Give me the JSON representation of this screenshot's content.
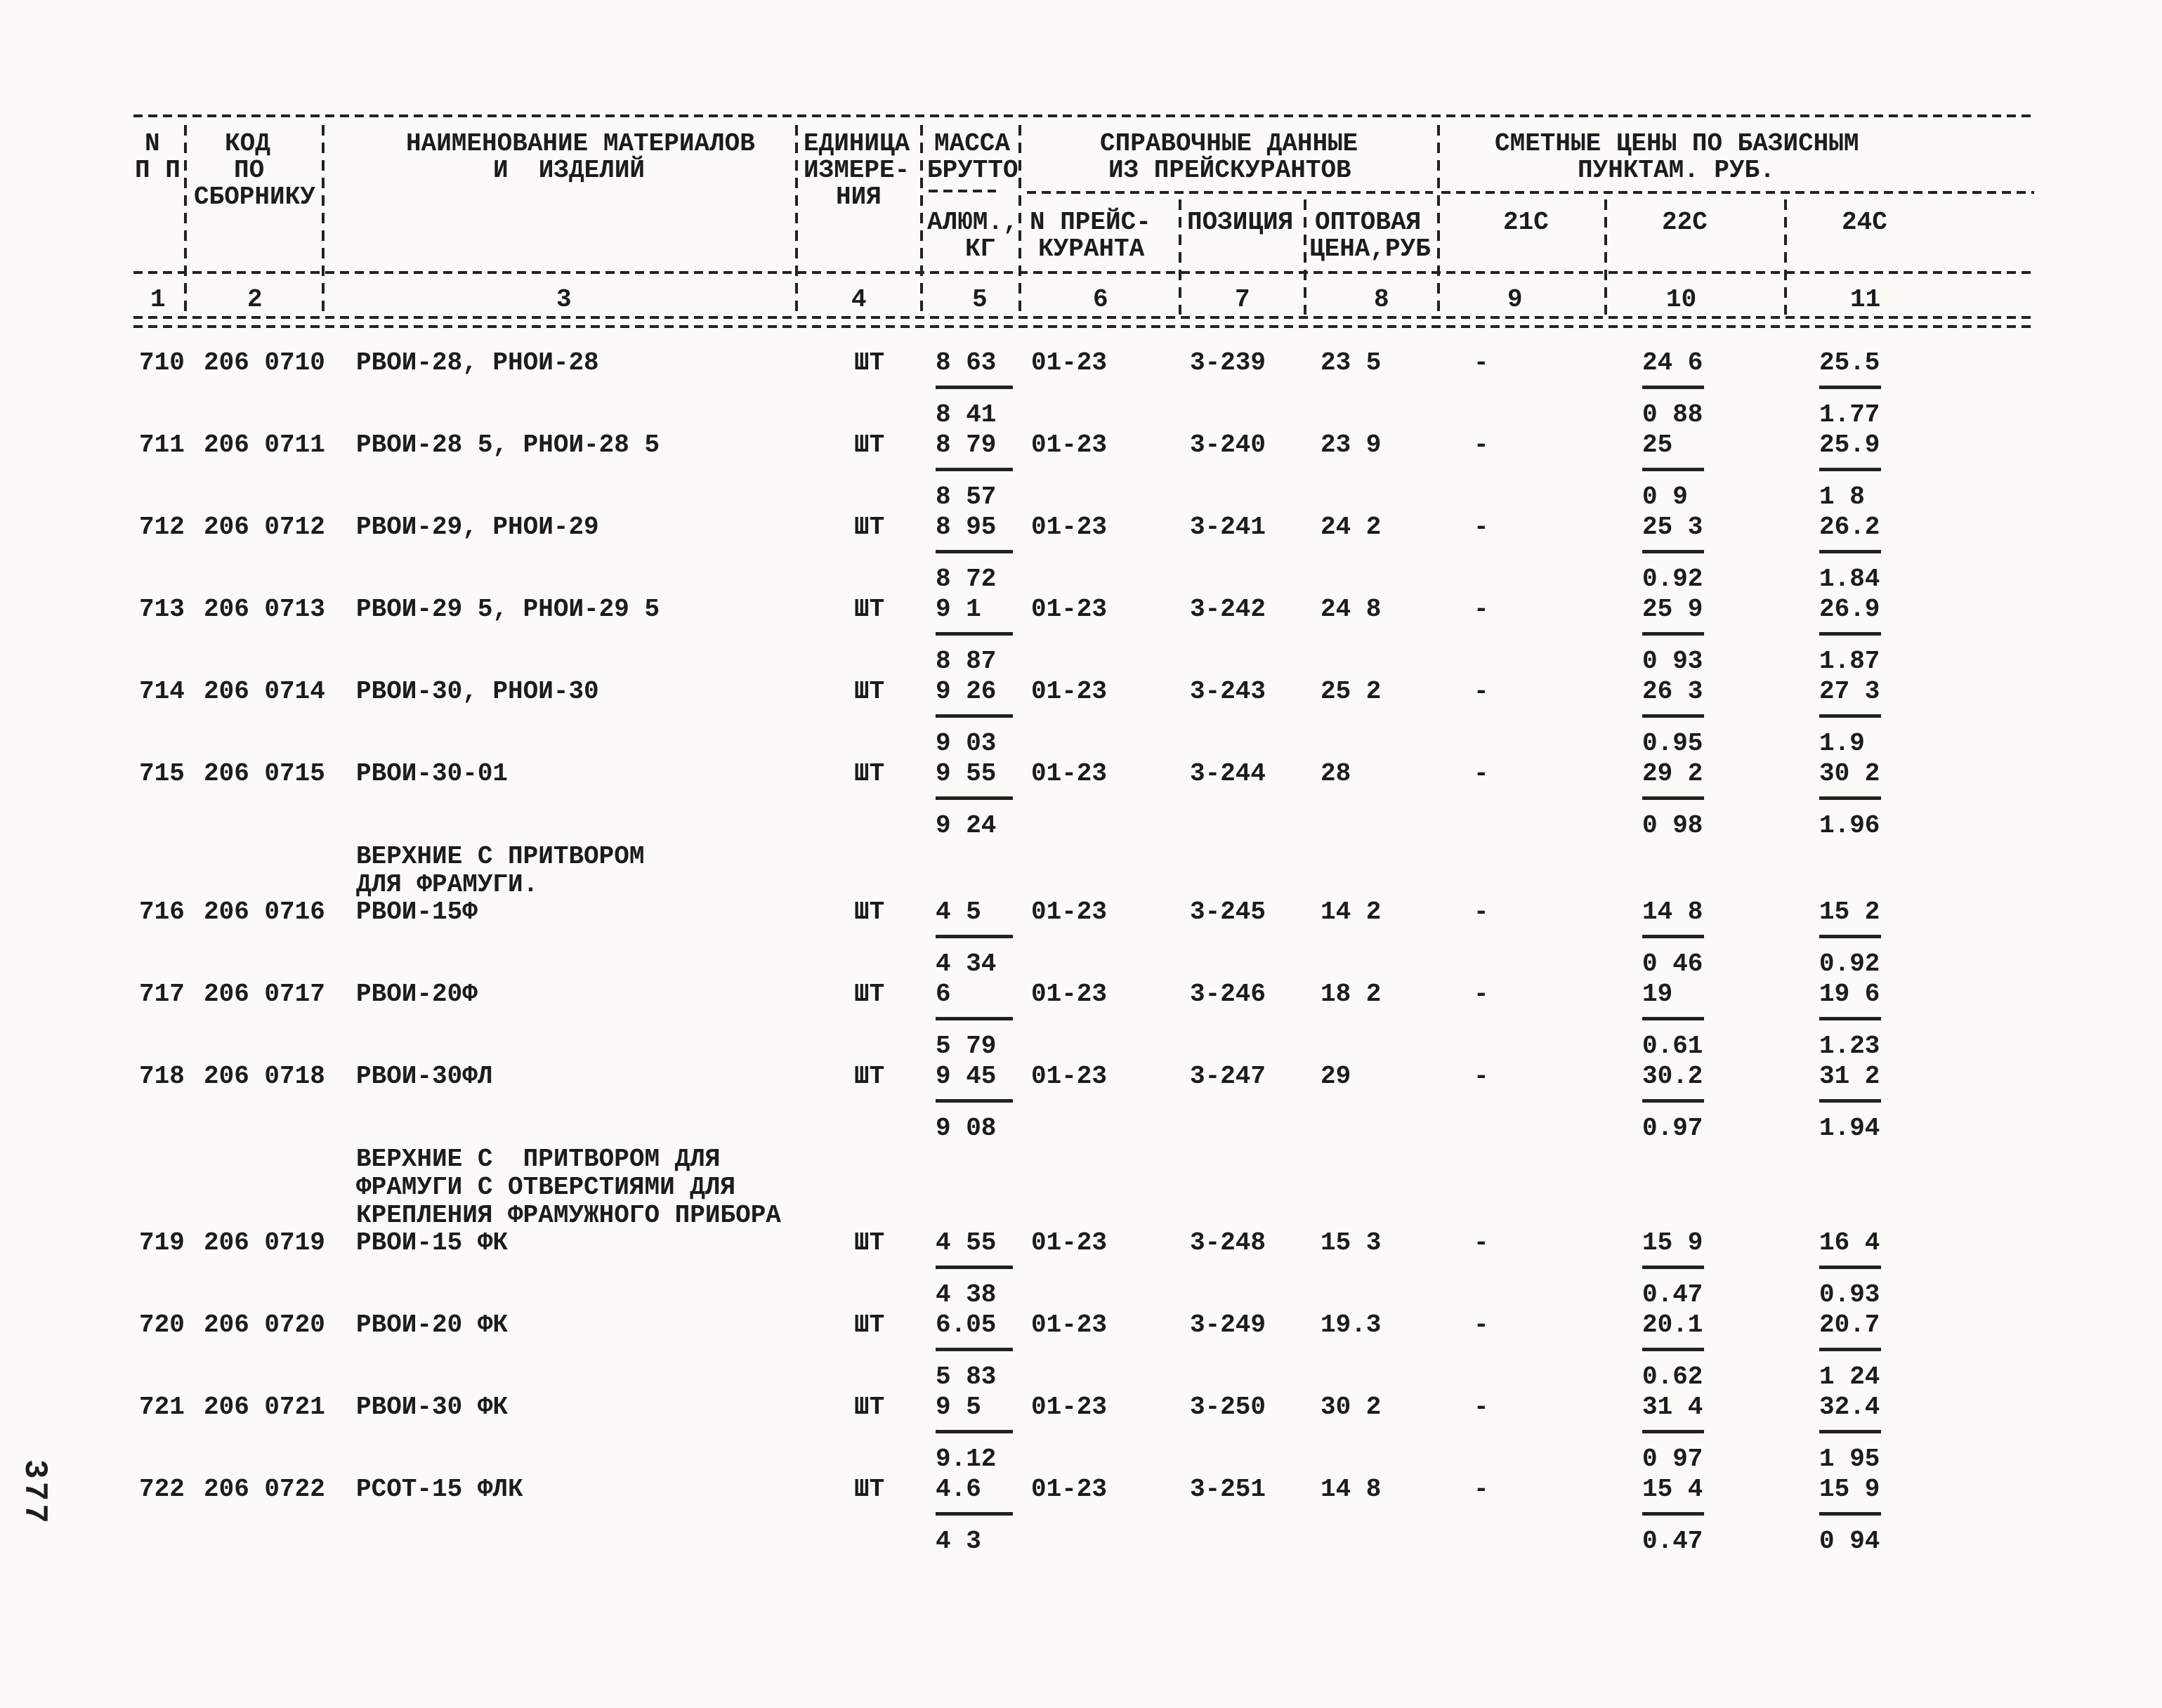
{
  "page_number": "377",
  "table": {
    "header": {
      "c1_line1": "N",
      "c1_line2": "П П",
      "c2_line1": "КОД",
      "c2_line2": "ПО",
      "c2_line3": "СБОРНИКУ",
      "c3_line1": "НАИМЕНОВАНИЕ МАТЕРИАЛОВ",
      "c3_line2": "И  ИЗДЕЛИЙ",
      "c4_line1": "ЕДИНИЦА",
      "c4_line2": "ИЗМЕРЕ-",
      "c4_line3": "НИЯ",
      "c5_line1": "МАССА",
      "c5_line2": "БРУТТО",
      "c5_line3": "АЛЮМ.,",
      "c5_line4": "КГ",
      "ref_group_line1": "СПРАВОЧНЫЕ ДАННЫЕ",
      "ref_group_line2": "ИЗ ПРЕЙСКУРАНТОВ",
      "price_group_line1": "СМЕТНЫЕ ЦЕНЫ ПО БАЗИСНЫМ",
      "price_group_line2": "ПУНКТАМ. РУБ.",
      "c6_line1": "N ПРЕЙС-",
      "c6_line2": "КУРАНТА",
      "c7": "ПОЗИЦИЯ",
      "c8_line1": "ОПТОВАЯ",
      "c8_line2": "ЦЕНА,РУБ",
      "c9": "21С",
      "c10": "22С",
      "c11": "24С",
      "nums": [
        "1",
        "2",
        "3",
        "4",
        "5",
        "6",
        "7",
        "8",
        "9",
        "10",
        "11"
      ]
    },
    "rows": [
      {
        "n": "710",
        "code": "206 0710",
        "name": "РВОИ-28, РНОИ-28",
        "unit": "ШТ",
        "mass": [
          "8 63",
          "8 41"
        ],
        "pricelist": "01-23",
        "position": "3-239",
        "wholesale": "23 5",
        "p21": "-",
        "p22": [
          "24 6",
          "0 88"
        ],
        "p24": [
          "25.5",
          "1.77"
        ]
      },
      {
        "n": "711",
        "code": "206 0711",
        "name": "РВОИ-28 5, РНОИ-28 5",
        "unit": "ШТ",
        "mass": [
          "8 79",
          "8 57"
        ],
        "pricelist": "01-23",
        "position": "3-240",
        "wholesale": "23 9",
        "p21": "-",
        "p22": [
          "25",
          "0 9"
        ],
        "p24": [
          "25.9",
          "1 8"
        ]
      },
      {
        "n": "712",
        "code": "206 0712",
        "name": "РВОИ-29, РНОИ-29",
        "unit": "ШТ",
        "mass": [
          "8 95",
          "8 72"
        ],
        "pricelist": "01-23",
        "position": "3-241",
        "wholesale": "24 2",
        "p21": "-",
        "p22": [
          "25 3",
          "0.92"
        ],
        "p24": [
          "26.2",
          "1.84"
        ]
      },
      {
        "n": "713",
        "code": "206 0713",
        "name": "РВОИ-29 5, РНОИ-29 5",
        "unit": "ШТ",
        "mass": [
          "9 1",
          "8 87"
        ],
        "pricelist": "01-23",
        "position": "3-242",
        "wholesale": "24 8",
        "p21": "-",
        "p22": [
          "25 9",
          "0 93"
        ],
        "p24": [
          "26.9",
          "1.87"
        ]
      },
      {
        "n": "714",
        "code": "206 0714",
        "name": "РВОИ-30, РНОИ-30",
        "unit": "ШТ",
        "mass": [
          "9 26",
          "9 03"
        ],
        "pricelist": "01-23",
        "position": "3-243",
        "wholesale": "25 2",
        "p21": "-",
        "p22": [
          "26 3",
          "0.95"
        ],
        "p24": [
          "27 3",
          "1.9"
        ]
      },
      {
        "n": "715",
        "code": "206 0715",
        "name": "РВОИ-30-01",
        "unit": "ШТ",
        "mass": [
          "9 55",
          "9 24"
        ],
        "pricelist": "01-23",
        "position": "3-244",
        "wholesale": "28",
        "p21": "-",
        "p22": [
          "29 2",
          "0 98"
        ],
        "p24": [
          "30 2",
          "1.96"
        ]
      },
      {
        "group": [
          "ВЕРХНИЕ С ПРИТВОРОМ",
          "ДЛЯ ФРАМУГИ."
        ],
        "n": "716",
        "code": "206 0716",
        "name": "РВОИ-15Ф",
        "unit": "ШТ",
        "mass": [
          "4 5",
          "4 34"
        ],
        "pricelist": "01-23",
        "position": "3-245",
        "wholesale": "14 2",
        "p21": "-",
        "p22": [
          "14 8",
          "0 46"
        ],
        "p24": [
          "15 2",
          "0.92"
        ]
      },
      {
        "n": "717",
        "code": "206 0717",
        "name": "РВОИ-20Ф",
        "unit": "ШТ",
        "mass": [
          "6",
          "5 79"
        ],
        "pricelist": "01-23",
        "position": "3-246",
        "wholesale": "18 2",
        "p21": "-",
        "p22": [
          "19",
          "0.61"
        ],
        "p24": [
          "19 6",
          "1.23"
        ]
      },
      {
        "n": "718",
        "code": "206 0718",
        "name": "РВОИ-30ФЛ",
        "unit": "ШТ",
        "mass": [
          "9 45",
          "9 08"
        ],
        "pricelist": "01-23",
        "position": "3-247",
        "wholesale": "29",
        "p21": "-",
        "p22": [
          "30.2",
          "0.97"
        ],
        "p24": [
          "31 2",
          "1.94"
        ]
      },
      {
        "group": [
          "ВЕРХНИЕ С  ПРИТВОРОМ ДЛЯ",
          "ФРАМУГИ С ОТВЕРСТИЯМИ ДЛЯ",
          "КРЕПЛЕНИЯ ФРАМУЖНОГО ПРИБОРА"
        ],
        "n": "719",
        "code": "206 0719",
        "name": "РВОИ-15 ФК",
        "unit": "ШТ",
        "mass": [
          "4 55",
          "4 38"
        ],
        "pricelist": "01-23",
        "position": "3-248",
        "wholesale": "15 3",
        "p21": "-",
        "p22": [
          "15 9",
          "0.47"
        ],
        "p24": [
          "16 4",
          "0.93"
        ]
      },
      {
        "n": "720",
        "code": "206 0720",
        "name": "РВОИ-20 ФК",
        "unit": "ШТ",
        "mass": [
          "6.05",
          "5 83"
        ],
        "pricelist": "01-23",
        "position": "3-249",
        "wholesale": "19.3",
        "p21": "-",
        "p22": [
          "20.1",
          "0.62"
        ],
        "p24": [
          "20.7",
          "1 24"
        ]
      },
      {
        "n": "721",
        "code": "206 0721",
        "name": "РВОИ-30 ФК",
        "unit": "ШТ",
        "mass": [
          "9 5",
          "9.12"
        ],
        "pricelist": "01-23",
        "position": "3-250",
        "wholesale": "30 2",
        "p21": "-",
        "p22": [
          "31 4",
          "0 97"
        ],
        "p24": [
          "32.4",
          "1 95"
        ]
      },
      {
        "n": "722",
        "code": "206 0722",
        "name": "РСОТ-15 ФЛК",
        "unit": "ШТ",
        "mass": [
          "4.6",
          "4 3"
        ],
        "pricelist": "01-23",
        "position": "3-251",
        "wholesale": "14 8",
        "p21": "-",
        "p22": [
          "15 4",
          "0.47"
        ],
        "p24": [
          "15 9",
          "0 94"
        ]
      }
    ]
  }
}
